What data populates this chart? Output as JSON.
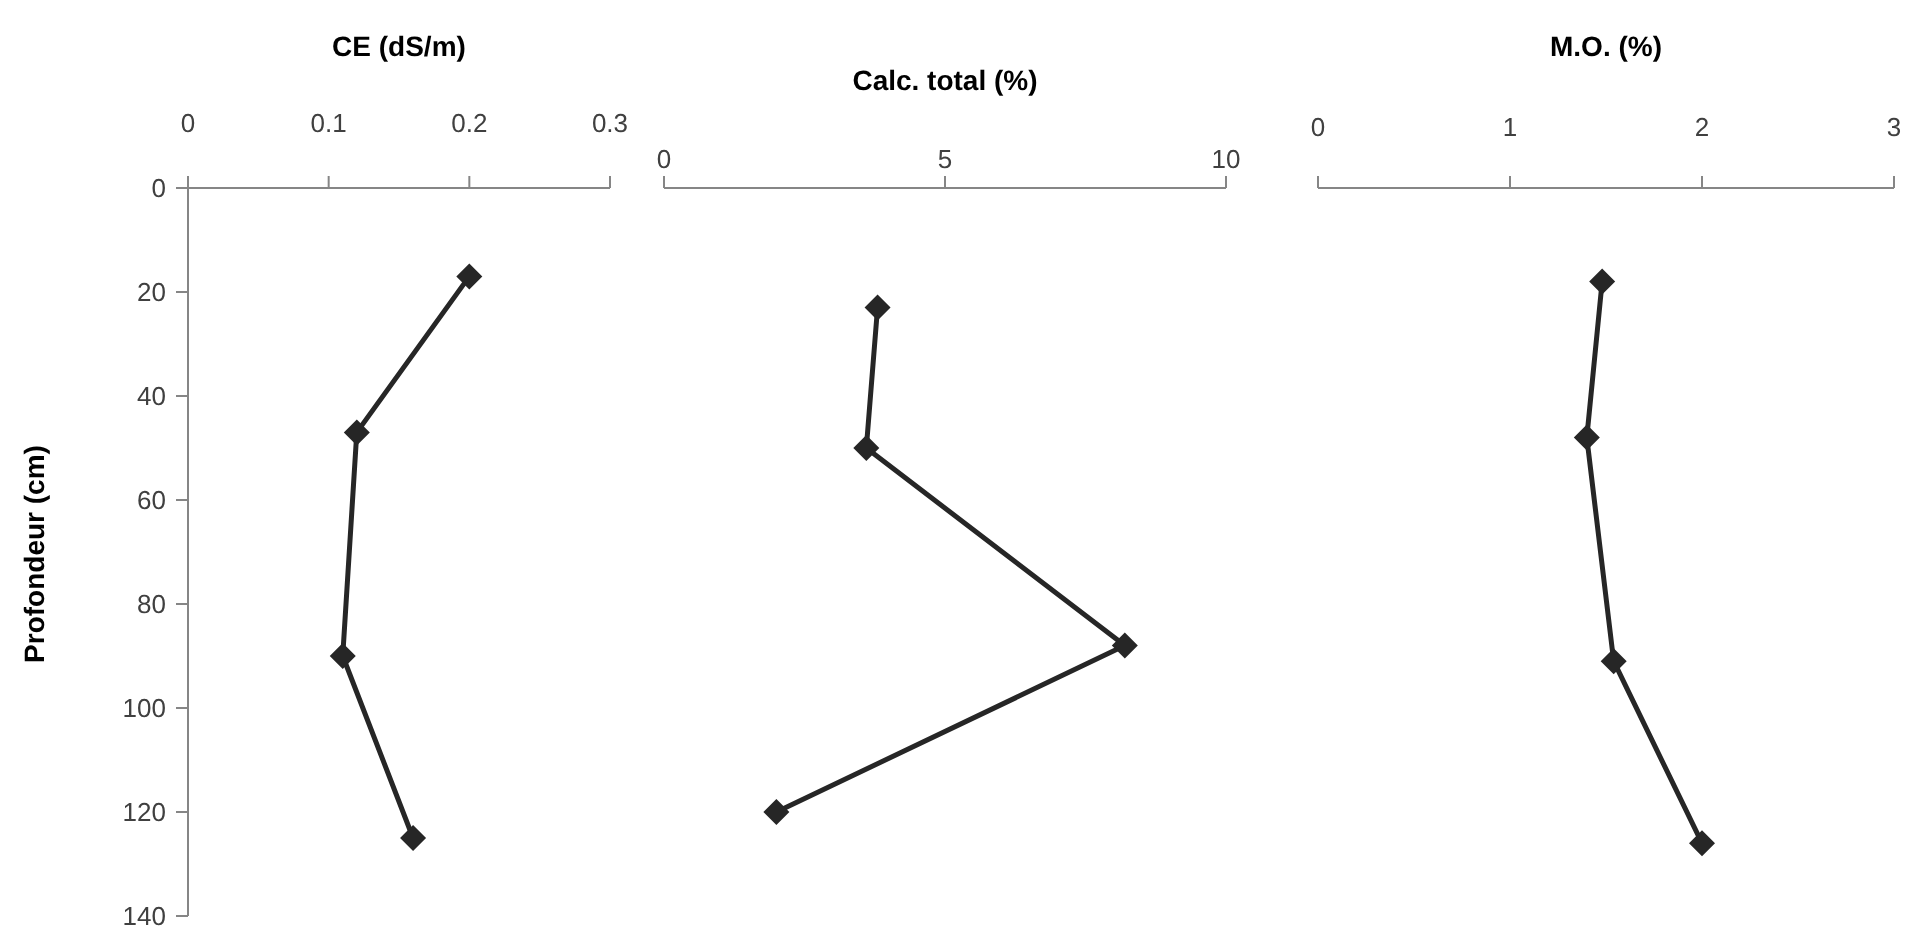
{
  "chart_data": [
    {
      "type": "line",
      "xlabel": "CE (dS/m)",
      "ylabel": "Profondeur (cm)",
      "x": [
        0.2,
        0.12,
        0.11,
        0.16
      ],
      "values": [
        17,
        47,
        90,
        125
      ],
      "color": "#262626",
      "marker": "diamond",
      "xlim": [
        0,
        0.3
      ],
      "xticks": [
        0,
        0.1,
        0.2,
        0.3
      ],
      "ylim": [
        140,
        0
      ],
      "yticks": [
        0,
        20,
        40,
        60,
        80,
        100,
        120,
        140
      ]
    },
    {
      "type": "line",
      "xlabel": "Calc. total (%)",
      "x": [
        3.8,
        3.6,
        8.2,
        2.0
      ],
      "values": [
        23,
        50,
        88,
        120
      ],
      "color": "#262626",
      "marker": "diamond",
      "xlim": [
        0,
        10
      ],
      "xticks": [
        0,
        5,
        10
      ],
      "ylim": [
        140,
        0
      ],
      "tick_labels": "x"
    },
    {
      "type": "line",
      "xlabel": "M.O. (%)",
      "x": [
        1.48,
        1.4,
        1.54,
        2
      ],
      "values": [
        18,
        48,
        91,
        126
      ],
      "color": "#262626",
      "marker": "diamond",
      "xlim": [
        0,
        3
      ],
      "xticks": [
        0,
        1,
        2,
        3
      ],
      "ylim": [
        140,
        0
      ],
      "tick_labels": "x"
    }
  ]
}
